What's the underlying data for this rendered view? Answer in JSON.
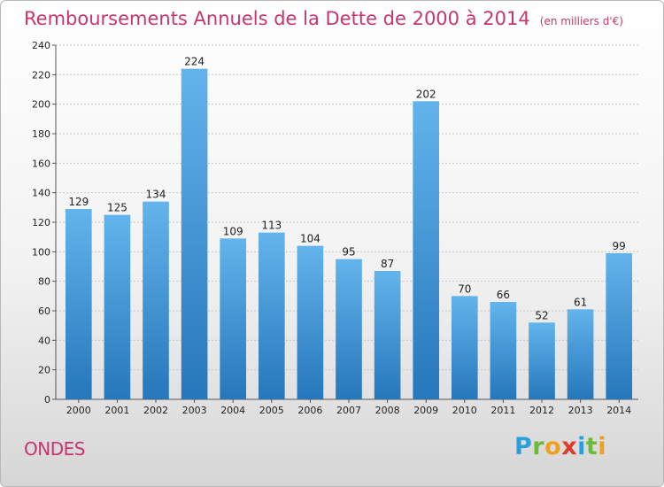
{
  "header": {
    "title": "Remboursements Annuels de la Dette de 2000 à 2014",
    "unit": "(en milliers d'€)"
  },
  "footer": {
    "city": "ONDES",
    "logo_letters": [
      {
        "ch": "P",
        "color": "#2a9fd8"
      },
      {
        "ch": "r",
        "color": "#6dbb3a"
      },
      {
        "ch": "o",
        "color": "#f0a020"
      },
      {
        "ch": "x",
        "color": "#e03a2a"
      },
      {
        "ch": "i",
        "color": "#2a9fd8"
      },
      {
        "ch": "t",
        "color": "#6dbb3a"
      },
      {
        "ch": "i",
        "color": "#f0a020"
      }
    ]
  },
  "colors": {
    "bar_top": "#63b3ec",
    "bar_bottom": "#2677bb",
    "title": "#c7356f"
  },
  "chart_data": {
    "type": "bar",
    "categories": [
      "2000",
      "2001",
      "2002",
      "2003",
      "2004",
      "2005",
      "2006",
      "2007",
      "2008",
      "2009",
      "2010",
      "2011",
      "2012",
      "2013",
      "2014"
    ],
    "values": [
      129,
      125,
      134,
      224,
      109,
      113,
      104,
      95,
      87,
      202,
      70,
      66,
      52,
      61,
      99
    ],
    "title": "Remboursements Annuels de la Dette de 2000 à 2014",
    "xlabel": "",
    "ylabel": "",
    "ylim": [
      0,
      240
    ],
    "yticks": [
      0,
      20,
      40,
      60,
      80,
      100,
      120,
      140,
      160,
      180,
      200,
      220,
      240
    ],
    "grid": true,
    "legend": "none"
  }
}
